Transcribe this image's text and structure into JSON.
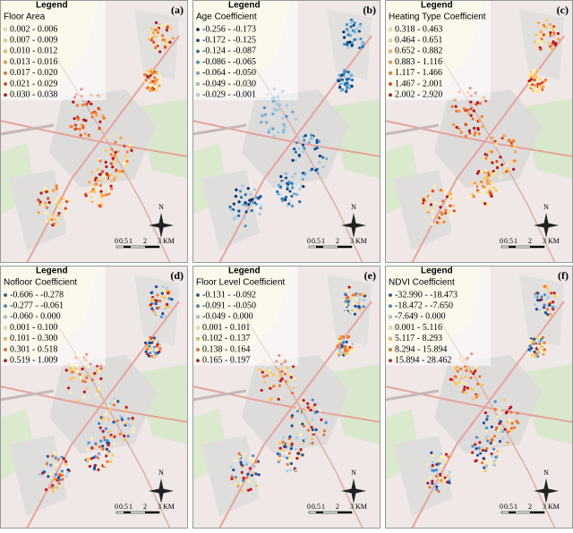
{
  "panels": [
    {
      "letter": "(a)",
      "legend_title": "Legend",
      "variable": "Floor Area",
      "classes": [
        {
          "label": "0.002 - 0.006",
          "color": "#fff3a8"
        },
        {
          "label": "0.007 - 0.009",
          "color": "#fee08b"
        },
        {
          "label": "0.010 - 0.012",
          "color": "#fdc55a"
        },
        {
          "label": "0.013 - 0.016",
          "color": "#fca040"
        },
        {
          "label": "0.017 - 0.020",
          "color": "#f47a2a"
        },
        {
          "label": "0.021 - 0.029",
          "color": "#e0461f"
        },
        {
          "label": "0.030 - 0.038",
          "color": "#b5121b"
        }
      ],
      "scale": [
        "0",
        "0.5",
        "1",
        "2",
        "3"
      ],
      "unit": "KM",
      "north": "N"
    },
    {
      "letter": "(b)",
      "legend_title": "Legend",
      "variable": "Age Coefficient",
      "classes": [
        {
          "label": "-0.256 - -0.173",
          "color": "#08306b"
        },
        {
          "label": "-0.172 - -0.125",
          "color": "#0d4f91"
        },
        {
          "label": "-0.124 - -0.087",
          "color": "#2171b5"
        },
        {
          "label": "-0.086 - -0.065",
          "color": "#4292c6"
        },
        {
          "label": "-0.064 - -0.050",
          "color": "#6baed6"
        },
        {
          "label": "-0.049 - -0.030",
          "color": "#9ecae1"
        },
        {
          "label": "-0.029 - -0.001",
          "color": "#c6dbef"
        }
      ],
      "scale": [
        "0",
        "0.5",
        "1",
        "2",
        "3"
      ],
      "unit": "KM",
      "north": "N"
    },
    {
      "letter": "(c)",
      "legend_title": "Legend",
      "variable": "Heating Type Coefficient",
      "classes": [
        {
          "label": "0.318 - 0.463",
          "color": "#fff3a8"
        },
        {
          "label": "0.464 - 0.651",
          "color": "#fee08b"
        },
        {
          "label": "0.652 - 0.882",
          "color": "#fdc55a"
        },
        {
          "label": "0.883 - 1.116",
          "color": "#fca040"
        },
        {
          "label": "1.117 - 1.466",
          "color": "#f47a2a"
        },
        {
          "label": "1.467 - 2.001",
          "color": "#e0461f"
        },
        {
          "label": "2.002 - 2.920",
          "color": "#b5121b"
        }
      ],
      "scale": [
        "0",
        "0.5",
        "1",
        "2",
        "3"
      ],
      "unit": "KM",
      "north": "N"
    },
    {
      "letter": "(d)",
      "legend_title": "Legend",
      "variable": "Nofloor Coefficient",
      "classes": [
        {
          "label": "-0.606 - -0.278",
          "color": "#1f4e9c"
        },
        {
          "label": "-0.277 - -0.061",
          "color": "#4a8bc8"
        },
        {
          "label": "-0.060 - 0.000",
          "color": "#a9cfe5"
        },
        {
          "label": "0.001 - 0.100",
          "color": "#fff3a8"
        },
        {
          "label": "0.101 - 0.300",
          "color": "#fdc55a"
        },
        {
          "label": "0.301 - 0.518",
          "color": "#f4742a"
        },
        {
          "label": "0.519 - 1.009",
          "color": "#c3161d"
        }
      ],
      "scale": [
        "0",
        "0.5",
        "1",
        "2",
        "3"
      ],
      "unit": "KM",
      "north": "N"
    },
    {
      "letter": "(e)",
      "legend_title": "Legend",
      "variable": "Floor Level Coefficient",
      "classes": [
        {
          "label": "-0.131 - -0.092",
          "color": "#1f4e9c"
        },
        {
          "label": "-0.091 - -0.050",
          "color": "#4a8bc8"
        },
        {
          "label": "-0.049 - 0.000",
          "color": "#a9cfe5"
        },
        {
          "label": "0.001 - 0.101",
          "color": "#fff3a8"
        },
        {
          "label": "0.102 - 0.137",
          "color": "#fdc55a"
        },
        {
          "label": "0.138 - 0.164",
          "color": "#f4742a"
        },
        {
          "label": "0.165 - 0.197",
          "color": "#c3161d"
        }
      ],
      "scale": [
        "0",
        "0.5",
        "1",
        "2",
        "3"
      ],
      "unit": "KM",
      "north": "N"
    },
    {
      "letter": "(f)",
      "legend_title": "Legend",
      "variable": "NDVI Coefficient",
      "classes": [
        {
          "label": "-32.990 - -18.473",
          "color": "#1f4e9c"
        },
        {
          "label": "-18.472 - -7.650",
          "color": "#4a8bc8"
        },
        {
          "label": "-7.649 - 0.000",
          "color": "#a9cfe5"
        },
        {
          "label": "0.001 - 5.116",
          "color": "#fff3a8"
        },
        {
          "label": "5.117 - 8.293",
          "color": "#fdc55a"
        },
        {
          "label": "8.294 - 15.894",
          "color": "#f4742a"
        },
        {
          "label": "15.894 - 28.462",
          "color": "#c3161d"
        }
      ],
      "scale": [
        "0",
        "0.5",
        "1",
        "2",
        "3"
      ],
      "unit": "KM",
      "north": "N"
    }
  ]
}
